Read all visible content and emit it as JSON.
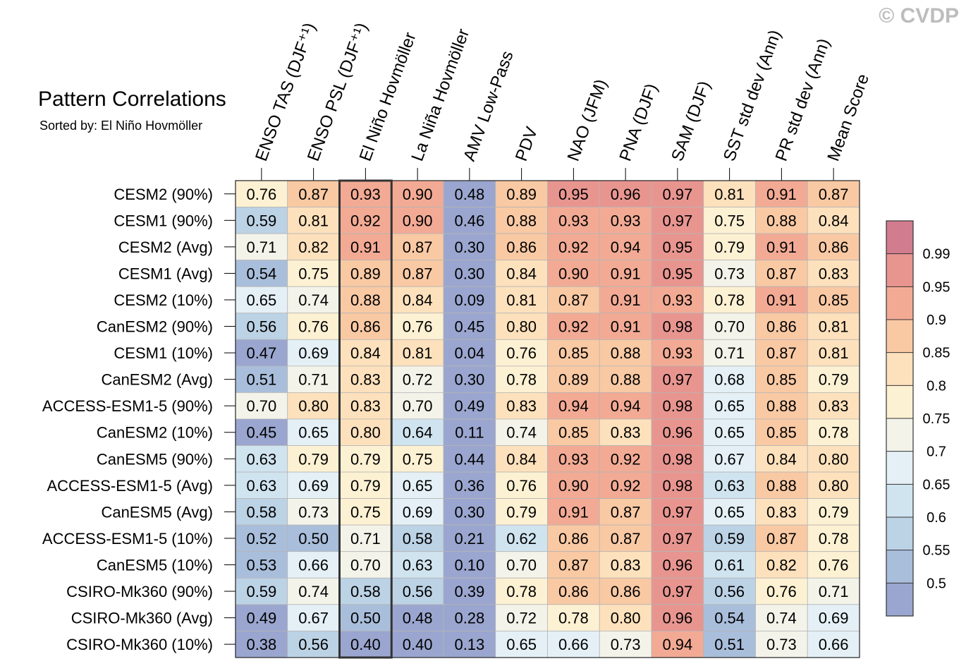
{
  "watermark": "© CVDP",
  "title": "Pattern Correlations",
  "subtitle": "Sorted by: El Niño Hovmöller",
  "chart_data": {
    "type": "heatmap",
    "columns": [
      "ENSO TAS (DJF⁺¹)",
      "ENSO PSL (DJF⁺¹)",
      "El Niño Hovmöller",
      "La Niña Hovmöller",
      "AMV Low-Pass",
      "PDV",
      "NAO (JFM)",
      "PNA (DJF)",
      "SAM (DJF)",
      "SST std dev (Ann)",
      "PR std dev (Ann)",
      "Mean Score"
    ],
    "rows": [
      "CESM2 (90%)",
      "CESM1 (90%)",
      "CESM2 (Avg)",
      "CESM1 (Avg)",
      "CESM2 (10%)",
      "CanESM2 (90%)",
      "CESM1 (10%)",
      "CanESM2 (Avg)",
      "ACCESS-ESM1-5 (90%)",
      "CanESM2 (10%)",
      "CanESM5 (90%)",
      "ACCESS-ESM1-5 (Avg)",
      "CanESM5 (Avg)",
      "ACCESS-ESM1-5 (10%)",
      "CanESM5 (10%)",
      "CSIRO-Mk360 (90%)",
      "CSIRO-Mk360 (Avg)",
      "CSIRO-Mk360 (10%)"
    ],
    "values": [
      [
        "0.76",
        "0.87",
        "0.93",
        "0.90",
        "0.48",
        "0.89",
        "0.95",
        "0.96",
        "0.97",
        "0.81",
        "0.91",
        "0.87"
      ],
      [
        "0.59",
        "0.81",
        "0.92",
        "0.90",
        "0.46",
        "0.88",
        "0.93",
        "0.93",
        "0.97",
        "0.75",
        "0.88",
        "0.84"
      ],
      [
        "0.71",
        "0.82",
        "0.91",
        "0.87",
        "0.30",
        "0.86",
        "0.92",
        "0.94",
        "0.95",
        "0.79",
        "0.91",
        "0.86"
      ],
      [
        "0.54",
        "0.75",
        "0.89",
        "0.87",
        "0.30",
        "0.84",
        "0.90",
        "0.91",
        "0.95",
        "0.73",
        "0.87",
        "0.83"
      ],
      [
        "0.65",
        "0.74",
        "0.88",
        "0.84",
        "0.09",
        "0.81",
        "0.87",
        "0.91",
        "0.93",
        "0.78",
        "0.91",
        "0.85"
      ],
      [
        "0.56",
        "0.76",
        "0.86",
        "0.76",
        "0.45",
        "0.80",
        "0.92",
        "0.91",
        "0.98",
        "0.70",
        "0.86",
        "0.81"
      ],
      [
        "0.47",
        "0.69",
        "0.84",
        "0.81",
        "0.04",
        "0.76",
        "0.85",
        "0.88",
        "0.93",
        "0.71",
        "0.87",
        "0.81"
      ],
      [
        "0.51",
        "0.71",
        "0.83",
        "0.72",
        "0.30",
        "0.78",
        "0.89",
        "0.88",
        "0.97",
        "0.68",
        "0.85",
        "0.79"
      ],
      [
        "0.70",
        "0.80",
        "0.83",
        "0.70",
        "0.49",
        "0.83",
        "0.94",
        "0.94",
        "0.98",
        "0.65",
        "0.88",
        "0.83"
      ],
      [
        "0.45",
        "0.65",
        "0.80",
        "0.64",
        "0.11",
        "0.74",
        "0.85",
        "0.83",
        "0.96",
        "0.65",
        "0.85",
        "0.78"
      ],
      [
        "0.63",
        "0.79",
        "0.79",
        "0.75",
        "0.44",
        "0.84",
        "0.93",
        "0.92",
        "0.98",
        "0.67",
        "0.84",
        "0.80"
      ],
      [
        "0.63",
        "0.69",
        "0.79",
        "0.65",
        "0.36",
        "0.76",
        "0.90",
        "0.92",
        "0.98",
        "0.63",
        "0.88",
        "0.80"
      ],
      [
        "0.58",
        "0.73",
        "0.75",
        "0.69",
        "0.30",
        "0.79",
        "0.91",
        "0.87",
        "0.97",
        "0.65",
        "0.83",
        "0.79"
      ],
      [
        "0.52",
        "0.50",
        "0.71",
        "0.58",
        "0.21",
        "0.62",
        "0.86",
        "0.87",
        "0.97",
        "0.59",
        "0.87",
        "0.78"
      ],
      [
        "0.53",
        "0.66",
        "0.70",
        "0.63",
        "0.10",
        "0.70",
        "0.87",
        "0.83",
        "0.96",
        "0.61",
        "0.82",
        "0.76"
      ],
      [
        "0.59",
        "0.74",
        "0.58",
        "0.56",
        "0.39",
        "0.78",
        "0.86",
        "0.86",
        "0.97",
        "0.56",
        "0.76",
        "0.71"
      ],
      [
        "0.49",
        "0.67",
        "0.50",
        "0.48",
        "0.28",
        "0.72",
        "0.78",
        "0.80",
        "0.96",
        "0.54",
        "0.74",
        "0.69"
      ],
      [
        "0.38",
        "0.56",
        "0.40",
        "0.40",
        "0.13",
        "0.65",
        "0.66",
        "0.73",
        "0.94",
        "0.51",
        "0.73",
        "0.66"
      ]
    ],
    "highlighted_column": "El Niño Hovmöller",
    "colorbar": {
      "labels": [
        "0.99",
        "0.95",
        "0.9",
        "0.85",
        "0.8",
        "0.75",
        "0.7",
        "0.65",
        "0.6",
        "0.55",
        "0.5"
      ],
      "levels": [
        0.5,
        0.55,
        0.6,
        0.65,
        0.7,
        0.75,
        0.8,
        0.85,
        0.9,
        0.95,
        0.99
      ],
      "colors": [
        "#9aa6cf",
        "#a9bedb",
        "#bcd2e5",
        "#d0e4f0",
        "#e4f0f6",
        "#f3f3ea",
        "#fdf1d3",
        "#fde1bc",
        "#f9c9a4",
        "#f2aa94",
        "#e89590",
        "#d27c90"
      ]
    }
  }
}
